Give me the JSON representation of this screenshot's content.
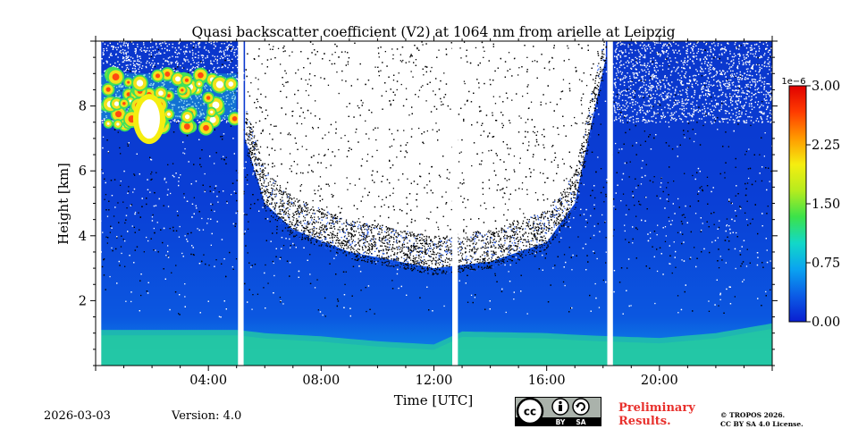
{
  "chart_data": {
    "type": "heatmap",
    "title": "Quasi backscatter coefficient (V2) at 1064 nm from arielle at Leipzig",
    "xlabel": "Time [UTC]",
    "ylabel": "Height [km]",
    "x_unit": "hours UTC",
    "xlim": [
      0,
      24
    ],
    "ylim": [
      0,
      10
    ],
    "x_ticks": [
      {
        "value": 4,
        "label": "04:00"
      },
      {
        "value": 8,
        "label": "08:00"
      },
      {
        "value": 12,
        "label": "12:00"
      },
      {
        "value": 16,
        "label": "16:00"
      },
      {
        "value": 20,
        "label": "20:00"
      }
    ],
    "y_ticks": [
      {
        "value": 2,
        "label": "2"
      },
      {
        "value": 4,
        "label": "4"
      },
      {
        "value": 6,
        "label": "6"
      },
      {
        "value": 8,
        "label": "8"
      }
    ],
    "colorbar": {
      "scale_label": "1e−6",
      "range": [
        0,
        3.0
      ],
      "ticks": [
        {
          "value": 0.0,
          "label": "0.00"
        },
        {
          "value": 0.75,
          "label": "0.75"
        },
        {
          "value": 1.5,
          "label": "1.50"
        },
        {
          "value": 2.25,
          "label": "2.25"
        },
        {
          "value": 3.0,
          "label": "3.00"
        }
      ],
      "colors": [
        "#0a1fd0",
        "#0b5ce6",
        "#0aa3f0",
        "#12d8c8",
        "#3be24a",
        "#b6ec1e",
        "#f5ee10",
        "#ff9a00",
        "#ff3c00",
        "#e00000"
      ]
    },
    "colors": {
      "low": "#0b42e0",
      "mid": "#0e7df0",
      "boundary_layer": "#22c4a8",
      "noise": "#000000",
      "cloud_edge": "#f2e21c",
      "cloud_core": "#ffffff"
    },
    "data_gaps_hours": [
      [
        0.0,
        0.2
      ],
      [
        5.05,
        5.25
      ],
      [
        12.65,
        12.85
      ],
      [
        18.15,
        18.35
      ]
    ],
    "boundary_layer_top_km": [
      [
        0,
        1.1
      ],
      [
        5,
        1.1
      ],
      [
        6,
        1.0
      ],
      [
        8,
        0.9
      ],
      [
        10,
        0.75
      ],
      [
        12,
        0.65
      ],
      [
        13,
        1.05
      ],
      [
        16,
        1.0
      ],
      [
        17,
        0.95
      ],
      [
        18.3,
        0.9
      ],
      [
        20,
        0.85
      ],
      [
        22,
        1.0
      ],
      [
        24,
        1.3
      ]
    ],
    "noise_free_zone_bottom_km": [
      [
        5.3,
        7.0
      ],
      [
        6,
        5.0
      ],
      [
        7,
        4.2
      ],
      [
        9,
        3.5
      ],
      [
        12,
        3.0
      ],
      [
        14,
        3.2
      ],
      [
        16,
        3.8
      ],
      [
        17,
        5.0
      ],
      [
        17.6,
        7.5
      ],
      [
        18.1,
        9.5
      ]
    ],
    "cloud_layer": {
      "start_h": 0.2,
      "end_h": 5.0,
      "base_km": 6.8,
      "top_km": 9.0
    }
  },
  "footer": {
    "date": "2026-03-03",
    "version": "Version: 4.0",
    "preliminary_line1": "Preliminary",
    "preliminary_line2": "Results.",
    "copyright_line1": "© TROPOS 2026.",
    "copyright_line2": "CC BY SA 4.0 License.",
    "license_badge": {
      "by": "BY",
      "sa": "SA"
    }
  }
}
